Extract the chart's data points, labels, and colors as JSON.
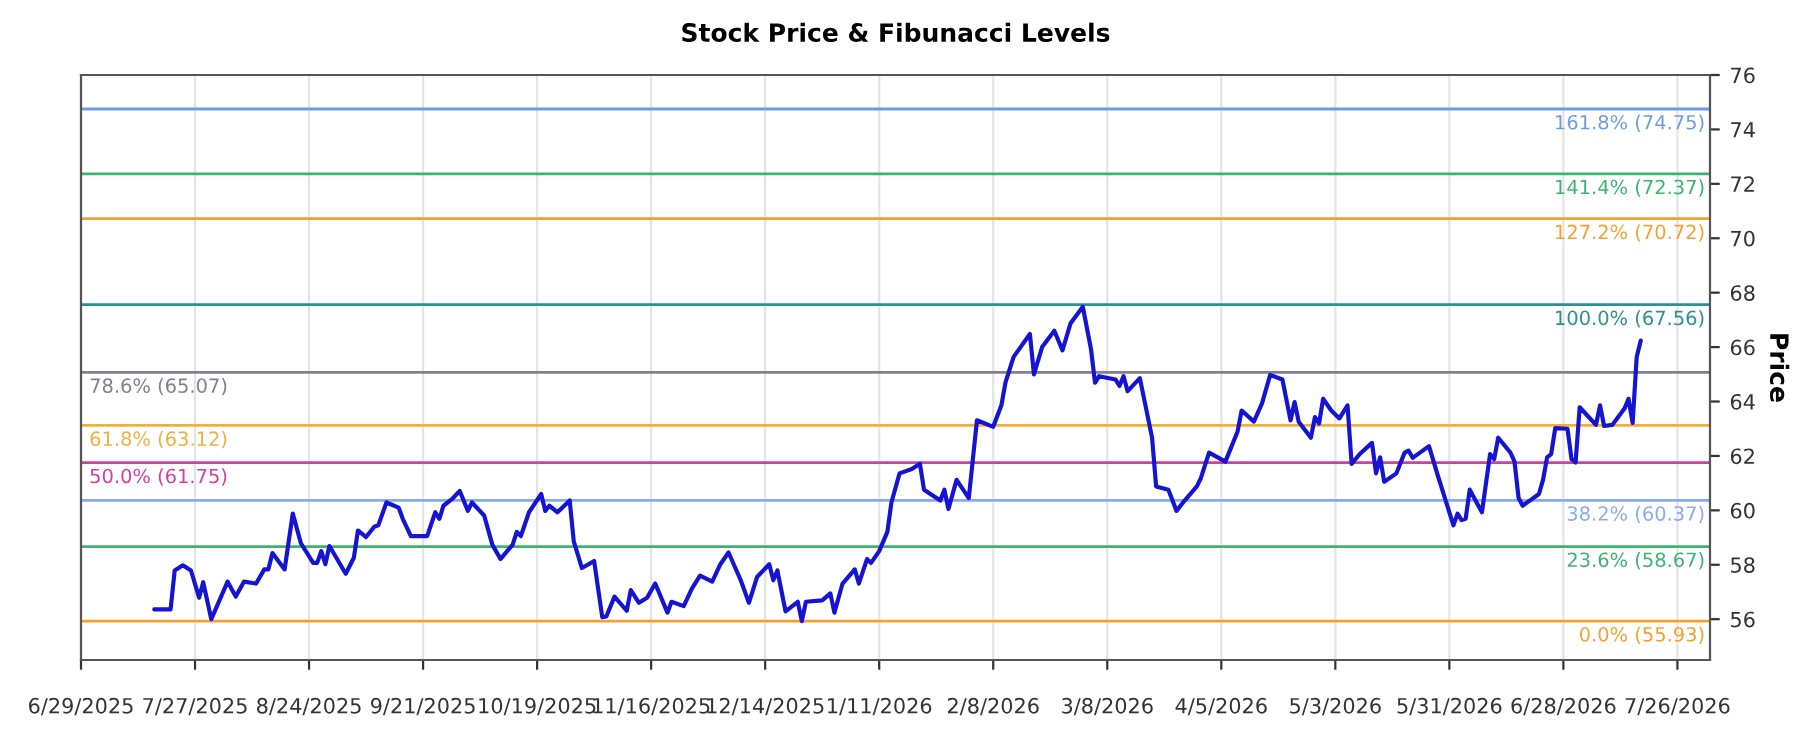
{
  "chart_data": {
    "type": "line",
    "title": "Stock Price & Fibunacci Levels",
    "ylabel": "Price",
    "xlim": [
      "2025-06-29",
      "2026-08-03"
    ],
    "ylim": [
      54.5,
      76
    ],
    "xticks": [
      {
        "value": "2025-06-29",
        "label": "6/29/2025"
      },
      {
        "value": "2025-07-27",
        "label": "7/27/2025"
      },
      {
        "value": "2025-08-24",
        "label": "8/24/2025"
      },
      {
        "value": "2025-09-21",
        "label": "9/21/2025"
      },
      {
        "value": "2025-10-19",
        "label": "10/19/2025"
      },
      {
        "value": "2025-11-16",
        "label": "11/16/2025"
      },
      {
        "value": "2025-12-14",
        "label": "12/14/2025"
      },
      {
        "value": "2026-01-11",
        "label": "1/11/2026"
      },
      {
        "value": "2026-02-08",
        "label": "2/8/2026"
      },
      {
        "value": "2026-03-08",
        "label": "3/8/2026"
      },
      {
        "value": "2026-04-05",
        "label": "4/5/2026"
      },
      {
        "value": "2026-05-03",
        "label": "5/3/2026"
      },
      {
        "value": "2026-05-31",
        "label": "5/31/2026"
      },
      {
        "value": "2026-06-28",
        "label": "6/28/2026"
      },
      {
        "value": "2026-07-26",
        "label": "7/26/2026"
      }
    ],
    "yticks": [
      56,
      58,
      60,
      62,
      64,
      66,
      68,
      70,
      72,
      74,
      76
    ],
    "grid": "x",
    "marker": "none",
    "line_style": "solid",
    "series": [
      {
        "color": "#1414d2",
        "x": [
          "2025-07-17",
          "2025-07-21",
          "2025-07-22",
          "2025-07-24",
          "2025-07-26",
          "2025-07-28",
          "2025-07-29",
          "2025-07-31",
          "2025-08-04",
          "2025-08-06",
          "2025-08-08",
          "2025-08-11",
          "2025-08-13",
          "2025-08-14",
          "2025-08-15",
          "2025-08-18",
          "2025-08-20",
          "2025-08-22",
          "2025-08-25",
          "2025-08-26",
          "2025-08-27",
          "2025-08-28",
          "2025-08-29",
          "2025-09-02",
          "2025-09-04",
          "2025-09-05",
          "2025-09-07",
          "2025-09-09",
          "2025-09-10",
          "2025-09-12",
          "2025-09-15",
          "2025-09-16",
          "2025-09-18",
          "2025-09-22",
          "2025-09-24",
          "2025-09-25",
          "2025-09-26",
          "2025-09-28",
          "2025-09-30",
          "2025-10-02",
          "2025-10-03",
          "2025-10-06",
          "2025-10-08",
          "2025-10-10",
          "2025-10-13",
          "2025-10-14",
          "2025-10-15",
          "2025-10-17",
          "2025-10-20",
          "2025-10-21",
          "2025-10-22",
          "2025-10-24",
          "2025-10-27",
          "2025-10-28",
          "2025-10-30",
          "2025-11-02",
          "2025-11-04",
          "2025-11-05",
          "2025-11-07",
          "2025-11-10",
          "2025-11-11",
          "2025-11-13",
          "2025-11-15",
          "2025-11-17",
          "2025-11-20",
          "2025-11-21",
          "2025-11-24",
          "2025-11-26",
          "2025-11-28",
          "2025-12-01",
          "2025-12-03",
          "2025-12-05",
          "2025-12-08",
          "2025-12-10",
          "2025-12-12",
          "2025-12-15",
          "2025-12-16",
          "2025-12-17",
          "2025-12-19",
          "2025-12-22",
          "2025-12-23",
          "2025-12-24",
          "2025-12-28",
          "2025-12-30",
          "2025-12-31",
          "2026-01-02",
          "2026-01-05",
          "2026-01-06",
          "2026-01-08",
          "2026-01-09",
          "2026-01-11",
          "2026-01-13",
          "2026-01-14",
          "2026-01-16",
          "2026-01-19",
          "2026-01-21",
          "2026-01-22",
          "2026-01-26",
          "2026-01-27",
          "2026-01-28",
          "2026-01-30",
          "2026-02-02",
          "2026-02-04",
          "2026-02-08",
          "2026-02-10",
          "2026-02-11",
          "2026-02-13",
          "2026-02-17",
          "2026-02-18",
          "2026-02-20",
          "2026-02-23",
          "2026-02-25",
          "2026-02-27",
          "2026-03-02",
          "2026-03-04",
          "2026-03-05",
          "2026-03-06",
          "2026-03-10",
          "2026-03-11",
          "2026-03-12",
          "2026-03-13",
          "2026-03-16",
          "2026-03-19",
          "2026-03-20",
          "2026-03-23",
          "2026-03-25",
          "2026-03-27",
          "2026-03-30",
          "2026-03-31",
          "2026-04-02",
          "2026-04-06",
          "2026-04-09",
          "2026-04-10",
          "2026-04-13",
          "2026-04-15",
          "2026-04-17",
          "2026-04-20",
          "2026-04-22",
          "2026-04-23",
          "2026-04-24",
          "2026-04-27",
          "2026-04-28",
          "2026-04-29",
          "2026-04-30",
          "2026-05-02",
          "2026-05-04",
          "2026-05-06",
          "2026-05-07",
          "2026-05-09",
          "2026-05-12",
          "2026-05-13",
          "2026-05-14",
          "2026-05-15",
          "2026-05-18",
          "2026-05-20",
          "2026-05-21",
          "2026-05-22",
          "2026-05-26",
          "2026-05-28",
          "2026-06-01",
          "2026-06-02",
          "2026-06-03",
          "2026-06-04",
          "2026-06-05",
          "2026-06-08",
          "2026-06-10",
          "2026-06-11",
          "2026-06-12",
          "2026-06-15",
          "2026-06-16",
          "2026-06-17",
          "2026-06-18",
          "2026-06-22",
          "2026-06-23",
          "2026-06-24",
          "2026-06-25",
          "2026-06-26",
          "2026-06-29",
          "2026-06-30",
          "2026-07-01",
          "2026-07-02",
          "2026-07-06",
          "2026-07-07",
          "2026-07-08",
          "2026-07-10",
          "2026-07-13",
          "2026-07-14",
          "2026-07-15",
          "2026-07-16",
          "2026-07-17"
        ],
        "values": [
          56.36,
          56.36,
          57.79,
          57.98,
          57.79,
          56.79,
          57.36,
          56.0,
          57.38,
          56.83,
          57.38,
          57.31,
          57.83,
          57.83,
          58.43,
          57.83,
          59.88,
          58.79,
          58.07,
          58.07,
          58.5,
          58.02,
          58.69,
          57.67,
          58.26,
          59.26,
          59.02,
          59.4,
          59.45,
          60.29,
          60.1,
          59.69,
          59.05,
          59.05,
          59.93,
          59.69,
          60.17,
          60.4,
          60.71,
          59.98,
          60.29,
          59.81,
          58.74,
          58.21,
          58.74,
          59.21,
          59.05,
          59.93,
          60.6,
          59.98,
          60.17,
          59.93,
          60.36,
          58.86,
          57.88,
          58.14,
          56.07,
          56.1,
          56.83,
          56.31,
          57.07,
          56.6,
          56.79,
          57.31,
          56.24,
          56.64,
          56.48,
          57.12,
          57.6,
          57.38,
          58.02,
          58.45,
          57.43,
          56.6,
          57.55,
          58.02,
          57.43,
          57.79,
          56.29,
          56.64,
          55.93,
          56.64,
          56.69,
          56.95,
          56.24,
          57.31,
          57.83,
          57.31,
          58.21,
          58.07,
          58.5,
          59.21,
          60.29,
          61.36,
          61.52,
          61.71,
          60.76,
          60.36,
          60.76,
          60.05,
          61.12,
          60.45,
          63.31,
          63.07,
          63.86,
          64.69,
          65.64,
          66.48,
          65.0,
          66.0,
          66.6,
          65.88,
          66.88,
          67.48,
          65.93,
          64.69,
          64.93,
          64.81,
          64.57,
          64.93,
          64.38,
          64.86,
          62.67,
          60.88,
          60.76,
          59.98,
          60.36,
          60.88,
          61.19,
          62.12,
          61.79,
          62.9,
          63.67,
          63.26,
          63.93,
          64.98,
          64.81,
          63.31,
          63.98,
          63.26,
          62.67,
          63.43,
          63.19,
          64.1,
          63.67,
          63.38,
          63.86,
          61.71,
          62.07,
          62.48,
          61.36,
          61.95,
          61.05,
          61.36,
          62.12,
          62.19,
          61.93,
          62.36,
          61.36,
          59.45,
          59.88,
          59.64,
          59.69,
          60.76,
          59.93,
          62.07,
          61.88,
          62.67,
          62.12,
          61.79,
          60.45,
          60.17,
          60.6,
          61.12,
          61.95,
          62.07,
          63.02,
          63.0,
          61.88,
          61.76,
          63.79,
          63.14,
          63.86,
          63.1,
          63.14,
          63.74,
          64.1,
          63.21,
          65.64,
          66.24
        ]
      }
    ],
    "ref_lines": [
      {
        "axis": "y",
        "value": 74.75,
        "label": "161.8% (74.75)",
        "color": "#6f9be0"
      },
      {
        "axis": "y",
        "value": 72.37,
        "label": "141.4% (72.37)",
        "color": "#3cb371"
      },
      {
        "axis": "y",
        "value": 70.72,
        "label": "127.2% (70.72)",
        "color": "#f5a030"
      },
      {
        "axis": "y",
        "value": 67.56,
        "label": "100.0% (67.56)",
        "color": "#2e9090"
      },
      {
        "axis": "y",
        "value": 65.07,
        "label": "78.6% (65.07)",
        "color": "#808090"
      },
      {
        "axis": "y",
        "value": 63.12,
        "label": "61.8% (63.12)",
        "color": "#f0b040"
      },
      {
        "axis": "y",
        "value": 61.75,
        "label": "50.0% (61.75)",
        "color": "#d040a0"
      },
      {
        "axis": "y",
        "value": 60.37,
        "label": "38.2% (60.37)",
        "color": "#88aaee"
      },
      {
        "axis": "y",
        "value": 58.67,
        "label": "23.6% (58.67)",
        "color": "#3cb371"
      },
      {
        "axis": "y",
        "value": 55.93,
        "label": "0.0% (55.93)",
        "color": "#f5a030"
      }
    ]
  }
}
